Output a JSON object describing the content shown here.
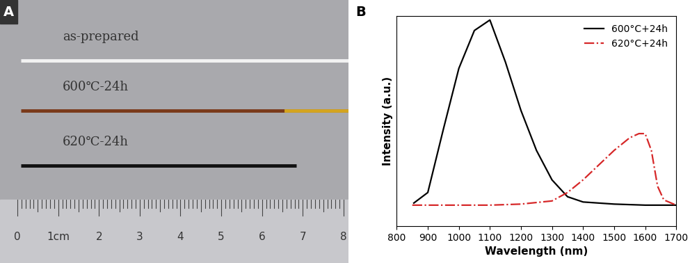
{
  "photo": {
    "label": "A",
    "samples": [
      "as-prepared",
      "600℃-24h",
      "620℃-24h"
    ],
    "ruler_labels": [
      "0",
      "1cm",
      "2",
      "3",
      "4",
      "5",
      "6",
      "7",
      "8"
    ]
  },
  "chart_data": {
    "type": "line",
    "title": "B",
    "x_label": "Wavelength (nm)",
    "y_label": "Intensity (a.u.)",
    "xlim": [
      800,
      1700
    ],
    "xticks": [
      800,
      900,
      1000,
      1100,
      1200,
      1300,
      1400,
      1500,
      1600,
      1700
    ],
    "ylim": [
      0,
      1
    ],
    "yticks": [],
    "tick_labels": "x",
    "legend": "upper right",
    "series": [
      {
        "name": "600°C+24h",
        "color": "#000000",
        "line_style": "solid",
        "x": [
          855,
          900,
          950,
          1000,
          1050,
          1100,
          1150,
          1200,
          1250,
          1300,
          1350,
          1400,
          1500,
          1600,
          1700
        ],
        "values": [
          0.11,
          0.16,
          0.46,
          0.75,
          0.93,
          0.98,
          0.78,
          0.55,
          0.36,
          0.22,
          0.14,
          0.115,
          0.105,
          0.1,
          0.1
        ]
      },
      {
        "name": "620°C+24h",
        "color": "#d62728",
        "line_style": "dashdot",
        "x": [
          850,
          1100,
          1200,
          1300,
          1350,
          1400,
          1450,
          1500,
          1550,
          1580,
          1600,
          1620,
          1640,
          1660,
          1700
        ],
        "values": [
          0.1,
          0.1,
          0.105,
          0.12,
          0.16,
          0.22,
          0.29,
          0.36,
          0.42,
          0.44,
          0.44,
          0.36,
          0.19,
          0.125,
          0.1
        ]
      }
    ]
  }
}
